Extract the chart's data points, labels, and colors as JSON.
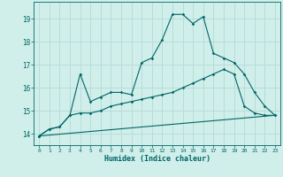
{
  "background_color": "#d0eeea",
  "grid_color": "#b8ddd8",
  "line_color": "#006666",
  "xlabel": "Humidex (Indice chaleur)",
  "ylim": [
    13.5,
    19.75
  ],
  "xlim": [
    -0.5,
    23.5
  ],
  "yticks": [
    14,
    15,
    16,
    17,
    18,
    19
  ],
  "xticks": [
    0,
    1,
    2,
    3,
    4,
    5,
    6,
    7,
    8,
    9,
    10,
    11,
    12,
    13,
    14,
    15,
    16,
    17,
    18,
    19,
    20,
    21,
    22,
    23
  ],
  "line1_x": [
    0,
    1,
    2,
    3,
    4,
    5,
    6,
    7,
    8,
    9,
    10,
    11,
    12,
    13,
    14,
    15,
    16,
    17,
    18,
    19,
    20,
    21,
    22,
    23
  ],
  "line1_y": [
    13.9,
    14.2,
    14.3,
    14.8,
    16.6,
    15.4,
    15.6,
    15.8,
    15.8,
    15.7,
    17.1,
    17.3,
    18.1,
    19.2,
    19.2,
    18.8,
    19.1,
    17.5,
    17.3,
    17.1,
    16.6,
    15.8,
    15.2,
    14.8
  ],
  "line2_x": [
    0,
    1,
    2,
    3,
    4,
    5,
    6,
    7,
    8,
    9,
    10,
    11,
    12,
    13,
    14,
    15,
    16,
    17,
    18,
    19,
    20,
    21,
    22,
    23
  ],
  "line2_y": [
    13.9,
    14.2,
    14.3,
    14.8,
    14.9,
    14.9,
    15.0,
    15.2,
    15.3,
    15.4,
    15.5,
    15.6,
    15.7,
    15.8,
    16.0,
    16.2,
    16.4,
    16.6,
    16.8,
    16.6,
    15.2,
    14.9,
    14.8,
    14.8
  ],
  "line3_x": [
    0,
    23
  ],
  "line3_y": [
    13.9,
    14.8
  ]
}
